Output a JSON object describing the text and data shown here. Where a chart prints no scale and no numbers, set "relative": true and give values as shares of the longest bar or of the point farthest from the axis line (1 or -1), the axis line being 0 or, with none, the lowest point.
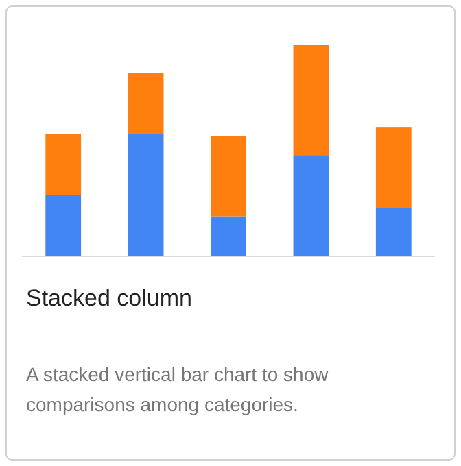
{
  "chart_data": {
    "type": "bar",
    "title": "Stacked column",
    "subtitle": "A stacked vertical bar chart to show comparisons among categories.",
    "categories": [
      null,
      null,
      null,
      null,
      null
    ],
    "stacked": true,
    "relative": true,
    "series": [
      {
        "color": "#4285f4",
        "values": [
          0.29,
          0.58,
          0.19,
          0.48,
          0.23
        ]
      },
      {
        "color": "#ff7f0e",
        "values": [
          0.29,
          0.29,
          0.38,
          0.52,
          0.38
        ]
      }
    ]
  }
}
